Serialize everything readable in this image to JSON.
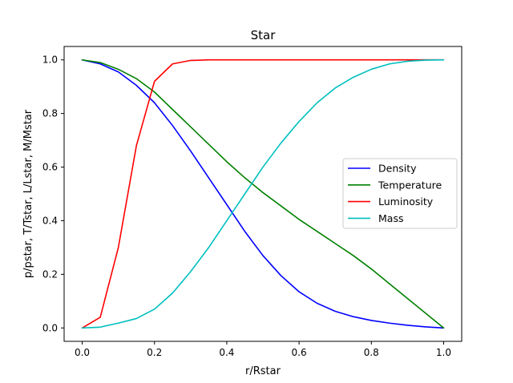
{
  "chart_data": {
    "type": "line",
    "title": "Star",
    "xlabel": "r/Rstar",
    "ylabel": "p/pstar, T/Tstar, L/Lstar, M/Mstar",
    "xlim": [
      -0.05,
      1.05
    ],
    "ylim": [
      -0.05,
      1.05
    ],
    "xticks": [
      0.0,
      0.2,
      0.4,
      0.6,
      0.8,
      1.0
    ],
    "yticks": [
      0.0,
      0.2,
      0.4,
      0.6,
      0.8,
      1.0
    ],
    "xtick_labels": [
      "0.0",
      "0.2",
      "0.4",
      "0.6",
      "0.8",
      "1.0"
    ],
    "ytick_labels": [
      "0.0",
      "0.2",
      "0.4",
      "0.6",
      "0.8",
      "1.0"
    ],
    "grid": false,
    "legend_position": "center-right",
    "x": [
      0.0,
      0.05,
      0.1,
      0.15,
      0.2,
      0.25,
      0.3,
      0.35,
      0.4,
      0.45,
      0.5,
      0.55,
      0.6,
      0.65,
      0.7,
      0.75,
      0.8,
      0.85,
      0.9,
      0.95,
      1.0
    ],
    "series": [
      {
        "name": "Density",
        "color": "#0000ff",
        "values": [
          1.0,
          0.985,
          0.955,
          0.905,
          0.84,
          0.755,
          0.66,
          0.56,
          0.46,
          0.36,
          0.27,
          0.195,
          0.135,
          0.092,
          0.062,
          0.042,
          0.028,
          0.018,
          0.01,
          0.004,
          0.0
        ]
      },
      {
        "name": "Temperature",
        "color": "#008000",
        "values": [
          1.0,
          0.99,
          0.965,
          0.93,
          0.88,
          0.815,
          0.75,
          0.685,
          0.62,
          0.56,
          0.505,
          0.455,
          0.405,
          0.36,
          0.315,
          0.27,
          0.22,
          0.165,
          0.11,
          0.055,
          0.0
        ]
      },
      {
        "name": "Luminosity",
        "color": "#ff0000",
        "values": [
          0.0,
          0.04,
          0.3,
          0.68,
          0.92,
          0.985,
          0.998,
          1.0,
          1.0,
          1.0,
          1.0,
          1.0,
          1.0,
          1.0,
          1.0,
          1.0,
          1.0,
          1.0,
          1.0,
          1.0,
          1.0
        ]
      },
      {
        "name": "Mass",
        "color": "#00bfbf",
        "values": [
          0.0,
          0.003,
          0.018,
          0.035,
          0.07,
          0.13,
          0.21,
          0.3,
          0.4,
          0.5,
          0.6,
          0.69,
          0.77,
          0.84,
          0.895,
          0.935,
          0.965,
          0.985,
          0.995,
          0.999,
          1.0
        ]
      }
    ]
  }
}
